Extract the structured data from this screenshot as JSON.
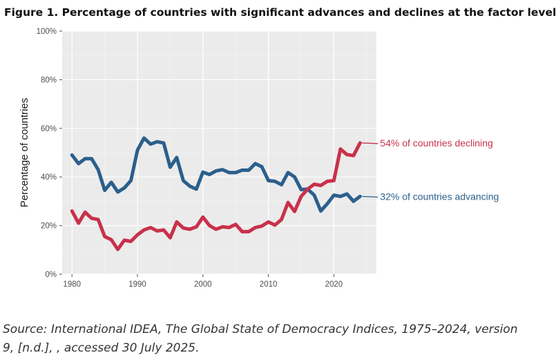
{
  "figure_title": "Figure 1. Percentage of countries with significant advances and declines at the factor level",
  "source_note": "Source: International IDEA, The Global State of Democracy Indices, 1975–2024, version 9, [n.d.], , accessed 30 July 2025.",
  "chart_data": {
    "type": "line",
    "title": "Figure 1. Percentage of countries with significant advances and declines at the factor level",
    "xlabel": "",
    "ylabel": "Percentage of countries",
    "x": [
      1980,
      1981,
      1982,
      1983,
      1984,
      1985,
      1986,
      1987,
      1988,
      1989,
      1990,
      1991,
      1992,
      1993,
      1994,
      1995,
      1996,
      1997,
      1998,
      1999,
      2000,
      2001,
      2002,
      2003,
      2004,
      2005,
      2006,
      2007,
      2008,
      2009,
      2010,
      2011,
      2012,
      2013,
      2014,
      2015,
      2016,
      2017,
      2018,
      2019,
      2020,
      2021,
      2022,
      2023,
      2024
    ],
    "xlim": [
      1978.5,
      2026.5
    ],
    "ylim": [
      0,
      100
    ],
    "xticks": [
      "1980",
      "1990",
      "2000",
      "2010",
      "2020"
    ],
    "yticks": [
      "0%",
      "20%",
      "40%",
      "60%",
      "80%",
      "100%"
    ],
    "grid": true,
    "series": [
      {
        "name": "advancing",
        "color": "#2b5f8c",
        "values": [
          49,
          45.5,
          47.5,
          47.5,
          43,
          34.5,
          37.8,
          33.8,
          35.5,
          38.5,
          51,
          56,
          53.5,
          54.5,
          54,
          44,
          48,
          38.5,
          36.2,
          35,
          42,
          41,
          42.5,
          43,
          41.8,
          41.8,
          42.8,
          42.8,
          45.5,
          44.2,
          38.5,
          38.2,
          36.8,
          41.8,
          40,
          34.8,
          35,
          32.5,
          26,
          29,
          32.5,
          32,
          33,
          30,
          32
        ]
      },
      {
        "name": "declining",
        "color": "#c8314a",
        "values": [
          26,
          21,
          25.5,
          23,
          22.5,
          15.5,
          14.2,
          10.2,
          14,
          13.5,
          16.2,
          18.2,
          19.2,
          17.8,
          18.2,
          15,
          21.5,
          19,
          18.5,
          19.5,
          23.5,
          20,
          18.5,
          19.5,
          19.2,
          20.5,
          17.5,
          17.5,
          19.2,
          19.8,
          21.5,
          20.2,
          22.5,
          29.5,
          25.8,
          32,
          35,
          37,
          36.5,
          38.2,
          38.5,
          51.5,
          49.2,
          48.8,
          54
        ]
      }
    ],
    "annotations": [
      {
        "text": "54% of countries declining",
        "series": "declining",
        "color": "#c8314a"
      },
      {
        "text": "32% of countries advancing",
        "series": "advancing",
        "color": "#2b5f8c"
      }
    ]
  }
}
